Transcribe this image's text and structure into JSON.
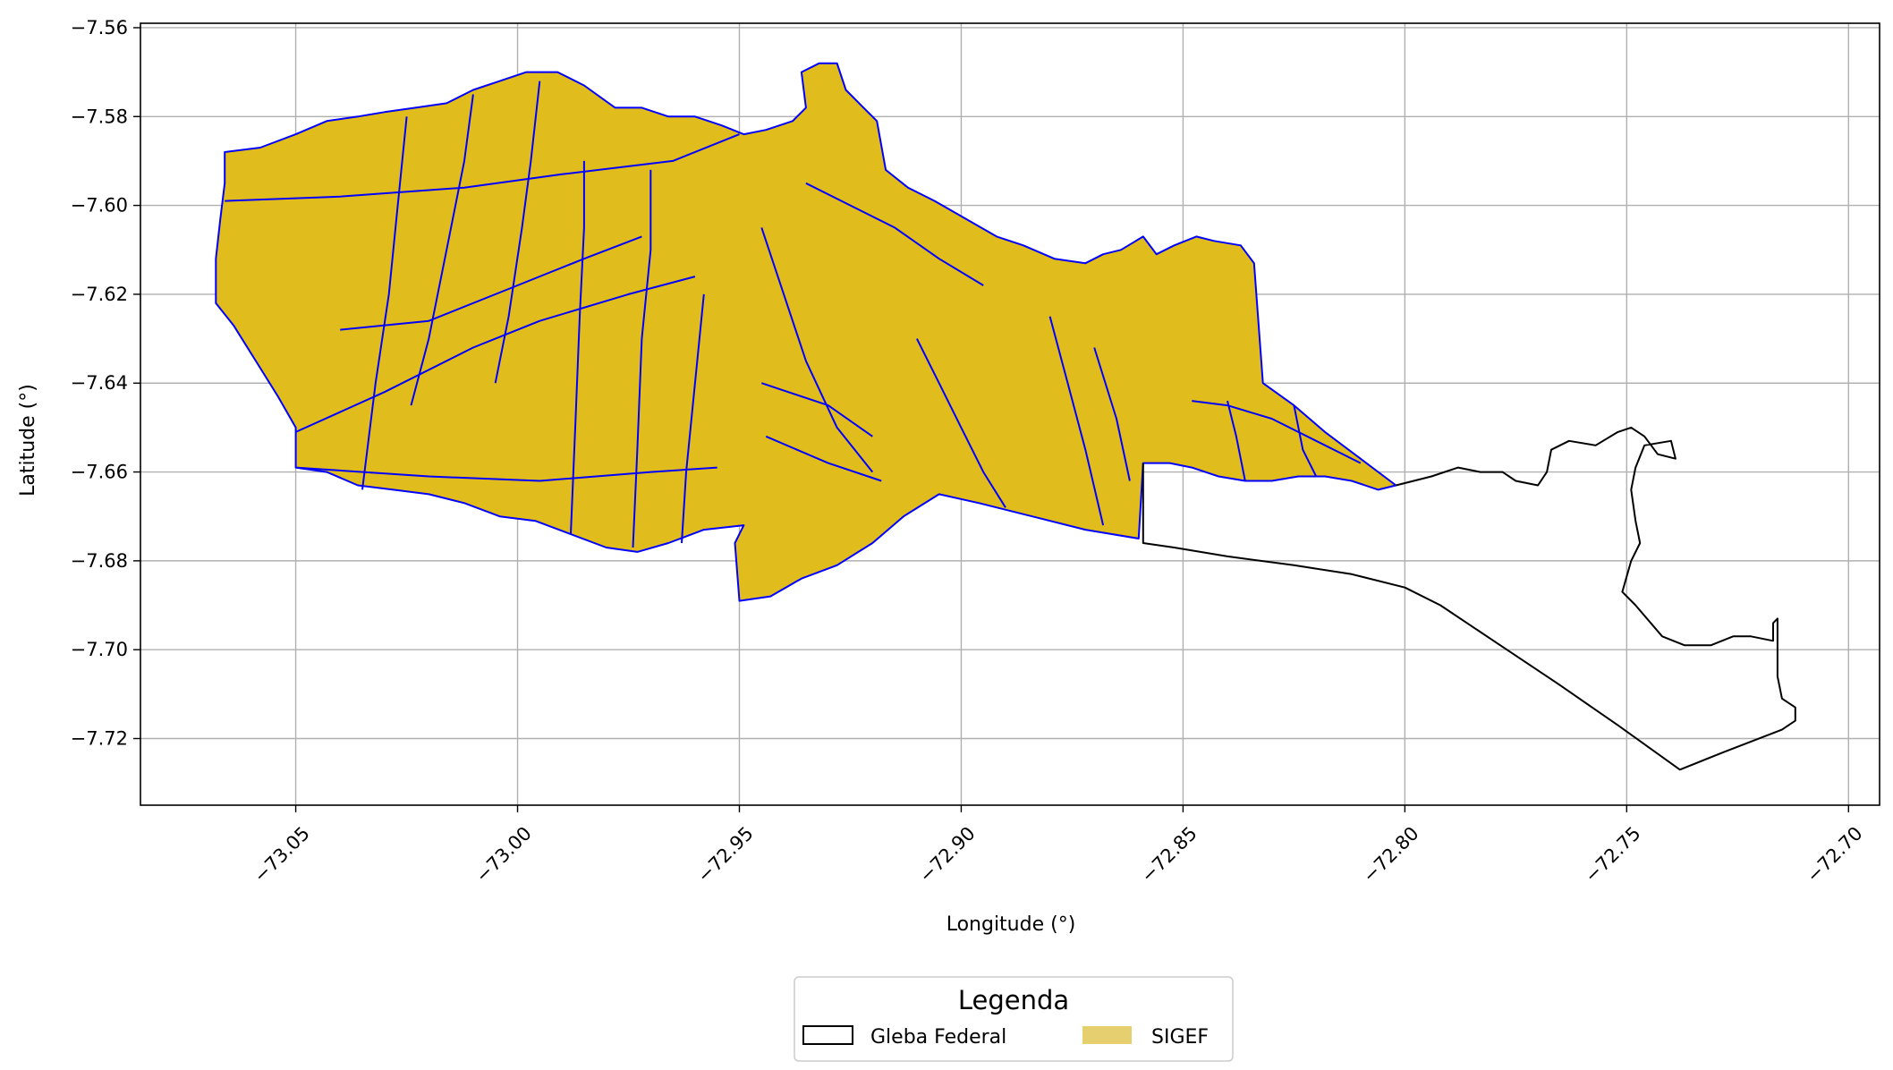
{
  "chart_data": {
    "type": "map",
    "xlabel": "Longitude (°)",
    "ylabel": "Latitude (°)",
    "xlim": [
      -73.085,
      -72.693
    ],
    "ylim": [
      -7.735,
      -7.559
    ],
    "x_ticks": [
      -73.05,
      -73.0,
      -72.95,
      -72.9,
      -72.85,
      -72.8,
      -72.75,
      -72.7
    ],
    "x_tick_labels": [
      "−73.05",
      "−73.00",
      "−72.95",
      "−72.90",
      "−72.85",
      "−72.80",
      "−72.75",
      "−72.70"
    ],
    "y_ticks": [
      -7.56,
      -7.58,
      -7.6,
      -7.62,
      -7.64,
      -7.66,
      -7.68,
      -7.7,
      -7.72
    ],
    "y_tick_labels": [
      "−7.56",
      "−7.58",
      "−7.60",
      "−7.62",
      "−7.64",
      "−7.66",
      "−7.68",
      "−7.70",
      "−7.72"
    ],
    "grid": true,
    "legend": {
      "title": "Legenda",
      "placement": "bottom-center, below axes",
      "entries": [
        {
          "label": "Gleba Federal",
          "style": "outline",
          "color": "#000000"
        },
        {
          "label": "SIGEF",
          "style": "fill",
          "color": "#e6cf6f"
        }
      ]
    },
    "colors": {
      "sigef_fill": "#e0bd1c",
      "sigef_edge": "#0000ff",
      "gleba_edge": "#000000",
      "grid": "#b0b0b0"
    },
    "layers": {
      "sigef_outline": [
        [
          -73.066,
          -7.588
        ],
        [
          -73.058,
          -7.587
        ],
        [
          -73.05,
          -7.584
        ],
        [
          -73.043,
          -7.581
        ],
        [
          -73.036,
          -7.58
        ],
        [
          -73.03,
          -7.579
        ],
        [
          -73.023,
          -7.578
        ],
        [
          -73.016,
          -7.577
        ],
        [
          -73.01,
          -7.574
        ],
        [
          -73.004,
          -7.572
        ],
        [
          -72.998,
          -7.57
        ],
        [
          -72.991,
          -7.57
        ],
        [
          -72.985,
          -7.573
        ],
        [
          -72.978,
          -7.578
        ],
        [
          -72.972,
          -7.578
        ],
        [
          -72.966,
          -7.58
        ],
        [
          -72.96,
          -7.58
        ],
        [
          -72.954,
          -7.582
        ],
        [
          -72.949,
          -7.584
        ],
        [
          -72.944,
          -7.583
        ],
        [
          -72.938,
          -7.581
        ],
        [
          -72.935,
          -7.578
        ],
        [
          -72.936,
          -7.57
        ],
        [
          -72.932,
          -7.568
        ],
        [
          -72.928,
          -7.568
        ],
        [
          -72.926,
          -7.574
        ],
        [
          -72.922,
          -7.578
        ],
        [
          -72.919,
          -7.581
        ],
        [
          -72.917,
          -7.592
        ],
        [
          -72.912,
          -7.596
        ],
        [
          -72.906,
          -7.599
        ],
        [
          -72.899,
          -7.603
        ],
        [
          -72.892,
          -7.607
        ],
        [
          -72.886,
          -7.609
        ],
        [
          -72.879,
          -7.612
        ],
        [
          -72.872,
          -7.613
        ],
        [
          -72.868,
          -7.611
        ],
        [
          -72.864,
          -7.61
        ],
        [
          -72.859,
          -7.607
        ],
        [
          -72.856,
          -7.611
        ],
        [
          -72.852,
          -7.609
        ],
        [
          -72.847,
          -7.607
        ],
        [
          -72.843,
          -7.608
        ],
        [
          -72.837,
          -7.609
        ],
        [
          -72.834,
          -7.613
        ],
        [
          -72.832,
          -7.64
        ],
        [
          -72.825,
          -7.645
        ],
        [
          -72.818,
          -7.651
        ],
        [
          -72.81,
          -7.657
        ],
        [
          -72.802,
          -7.663
        ],
        [
          -72.806,
          -7.664
        ],
        [
          -72.812,
          -7.662
        ],
        [
          -72.818,
          -7.661
        ],
        [
          -72.824,
          -7.661
        ],
        [
          -72.83,
          -7.662
        ],
        [
          -72.836,
          -7.662
        ],
        [
          -72.842,
          -7.661
        ],
        [
          -72.848,
          -7.659
        ],
        [
          -72.853,
          -7.658
        ],
        [
          -72.859,
          -7.658
        ],
        [
          -72.86,
          -7.675
        ],
        [
          -72.872,
          -7.673
        ],
        [
          -72.884,
          -7.67
        ],
        [
          -72.896,
          -7.667
        ],
        [
          -72.905,
          -7.665
        ],
        [
          -72.913,
          -7.67
        ],
        [
          -72.92,
          -7.676
        ],
        [
          -72.928,
          -7.681
        ],
        [
          -72.936,
          -7.684
        ],
        [
          -72.943,
          -7.688
        ],
        [
          -72.95,
          -7.689
        ],
        [
          -72.951,
          -7.676
        ],
        [
          -72.949,
          -7.672
        ],
        [
          -72.958,
          -7.673
        ],
        [
          -72.966,
          -7.676
        ],
        [
          -72.973,
          -7.678
        ],
        [
          -72.98,
          -7.677
        ],
        [
          -72.988,
          -7.674
        ],
        [
          -72.996,
          -7.671
        ],
        [
          -73.004,
          -7.67
        ],
        [
          -73.012,
          -7.667
        ],
        [
          -73.02,
          -7.665
        ],
        [
          -73.028,
          -7.664
        ],
        [
          -73.036,
          -7.663
        ],
        [
          -73.043,
          -7.66
        ],
        [
          -73.05,
          -7.659
        ],
        [
          -73.05,
          -7.65
        ],
        [
          -73.054,
          -7.643
        ],
        [
          -73.059,
          -7.635
        ],
        [
          -73.064,
          -7.627
        ],
        [
          -73.068,
          -7.622
        ],
        [
          -73.068,
          -7.612
        ],
        [
          -73.067,
          -7.603
        ],
        [
          -73.066,
          -7.595
        ]
      ],
      "sigef_parcel_lines": [
        [
          [
            -73.066,
            -7.599
          ],
          [
            -73.04,
            -7.598
          ],
          [
            -73.012,
            -7.596
          ],
          [
            -72.99,
            -7.593
          ],
          [
            -72.965,
            -7.59
          ],
          [
            -72.95,
            -7.584
          ]
        ],
        [
          [
            -73.05,
            -7.651
          ],
          [
            -73.03,
            -7.642
          ],
          [
            -73.01,
            -7.632
          ],
          [
            -72.995,
            -7.626
          ],
          [
            -72.975,
            -7.62
          ],
          [
            -72.96,
            -7.616
          ]
        ],
        [
          [
            -73.05,
            -7.659
          ],
          [
            -73.02,
            -7.661
          ],
          [
            -72.995,
            -7.662
          ],
          [
            -72.97,
            -7.66
          ],
          [
            -72.955,
            -7.659
          ]
        ],
        [
          [
            -73.025,
            -7.58
          ],
          [
            -73.027,
            -7.6
          ],
          [
            -73.029,
            -7.62
          ],
          [
            -73.032,
            -7.64
          ],
          [
            -73.035,
            -7.664
          ]
        ],
        [
          [
            -73.01,
            -7.575
          ],
          [
            -73.012,
            -7.59
          ],
          [
            -73.016,
            -7.61
          ],
          [
            -73.02,
            -7.63
          ],
          [
            -73.024,
            -7.645
          ]
        ],
        [
          [
            -72.995,
            -7.572
          ],
          [
            -72.997,
            -7.59
          ],
          [
            -72.999,
            -7.605
          ],
          [
            -73.002,
            -7.625
          ],
          [
            -73.005,
            -7.64
          ]
        ],
        [
          [
            -72.985,
            -7.59
          ],
          [
            -72.985,
            -7.605
          ],
          [
            -72.986,
            -7.625
          ],
          [
            -72.987,
            -7.65
          ],
          [
            -72.988,
            -7.674
          ]
        ],
        [
          [
            -72.97,
            -7.592
          ],
          [
            -72.97,
            -7.61
          ],
          [
            -72.972,
            -7.63
          ],
          [
            -72.973,
            -7.655
          ],
          [
            -72.974,
            -7.677
          ]
        ],
        [
          [
            -72.958,
            -7.62
          ],
          [
            -72.96,
            -7.64
          ],
          [
            -72.962,
            -7.66
          ],
          [
            -72.963,
            -7.676
          ]
        ],
        [
          [
            -72.945,
            -7.605
          ],
          [
            -72.94,
            -7.62
          ],
          [
            -72.935,
            -7.635
          ],
          [
            -72.928,
            -7.65
          ],
          [
            -72.92,
            -7.66
          ]
        ],
        [
          [
            -72.935,
            -7.595
          ],
          [
            -72.925,
            -7.6
          ],
          [
            -72.915,
            -7.605
          ],
          [
            -72.905,
            -7.612
          ],
          [
            -72.895,
            -7.618
          ]
        ],
        [
          [
            -72.91,
            -7.63
          ],
          [
            -72.905,
            -7.64
          ],
          [
            -72.9,
            -7.65
          ],
          [
            -72.895,
            -7.66
          ],
          [
            -72.89,
            -7.668
          ]
        ],
        [
          [
            -72.88,
            -7.625
          ],
          [
            -72.876,
            -7.64
          ],
          [
            -72.872,
            -7.655
          ],
          [
            -72.868,
            -7.672
          ]
        ],
        [
          [
            -72.87,
            -7.632
          ],
          [
            -72.865,
            -7.648
          ],
          [
            -72.862,
            -7.662
          ]
        ],
        [
          [
            -72.848,
            -7.644
          ],
          [
            -72.84,
            -7.645
          ],
          [
            -72.83,
            -7.648
          ],
          [
            -72.82,
            -7.653
          ],
          [
            -72.81,
            -7.658
          ]
        ],
        [
          [
            -72.84,
            -7.644
          ],
          [
            -72.838,
            -7.652
          ],
          [
            -72.836,
            -7.662
          ]
        ],
        [
          [
            -72.825,
            -7.645
          ],
          [
            -72.823,
            -7.655
          ],
          [
            -72.82,
            -7.661
          ]
        ],
        [
          [
            -73.04,
            -7.628
          ],
          [
            -73.02,
            -7.626
          ],
          [
            -73.0,
            -7.618
          ],
          [
            -72.985,
            -7.612
          ],
          [
            -72.972,
            -7.607
          ]
        ],
        [
          [
            -72.945,
            -7.64
          ],
          [
            -72.93,
            -7.645
          ],
          [
            -72.92,
            -7.652
          ]
        ],
        [
          [
            -72.944,
            -7.652
          ],
          [
            -72.93,
            -7.658
          ],
          [
            -72.918,
            -7.662
          ]
        ]
      ],
      "gleba_federal": [
        [
          -72.859,
          -7.658
        ],
        [
          -72.859,
          -7.676
        ],
        [
          -72.852,
          -7.677
        ],
        [
          -72.84,
          -7.679
        ],
        [
          -72.825,
          -7.681
        ],
        [
          -72.812,
          -7.683
        ],
        [
          -72.8,
          -7.686
        ],
        [
          -72.792,
          -7.69
        ],
        [
          -72.78,
          -7.698
        ],
        [
          -72.765,
          -7.708
        ],
        [
          -72.752,
          -7.717
        ],
        [
          -72.738,
          -7.727
        ],
        [
          -72.728,
          -7.723
        ],
        [
          -72.715,
          -7.718
        ],
        [
          -72.712,
          -7.716
        ],
        [
          -72.712,
          -7.713
        ],
        [
          -72.715,
          -7.711
        ],
        [
          -72.716,
          -7.706
        ],
        [
          -72.716,
          -7.698
        ],
        [
          -72.716,
          -7.693
        ],
        [
          -72.717,
          -7.694
        ],
        [
          -72.717,
          -7.698
        ],
        [
          -72.722,
          -7.697
        ],
        [
          -72.726,
          -7.697
        ],
        [
          -72.731,
          -7.699
        ],
        [
          -72.737,
          -7.699
        ],
        [
          -72.742,
          -7.697
        ],
        [
          -72.748,
          -7.69
        ],
        [
          -72.751,
          -7.687
        ],
        [
          -72.749,
          -7.68
        ],
        [
          -72.747,
          -7.676
        ],
        [
          -72.748,
          -7.671
        ],
        [
          -72.749,
          -7.664
        ],
        [
          -72.748,
          -7.659
        ],
        [
          -72.746,
          -7.654
        ],
        [
          -72.74,
          -7.653
        ],
        [
          -72.739,
          -7.657
        ],
        [
          -72.743,
          -7.656
        ],
        [
          -72.746,
          -7.652
        ],
        [
          -72.749,
          -7.65
        ],
        [
          -72.752,
          -7.651
        ],
        [
          -72.757,
          -7.654
        ],
        [
          -72.763,
          -7.653
        ],
        [
          -72.767,
          -7.655
        ],
        [
          -72.768,
          -7.66
        ],
        [
          -72.77,
          -7.663
        ],
        [
          -72.775,
          -7.662
        ],
        [
          -72.778,
          -7.66
        ],
        [
          -72.783,
          -7.66
        ],
        [
          -72.788,
          -7.659
        ],
        [
          -72.794,
          -7.661
        ],
        [
          -72.802,
          -7.663
        ]
      ]
    }
  }
}
